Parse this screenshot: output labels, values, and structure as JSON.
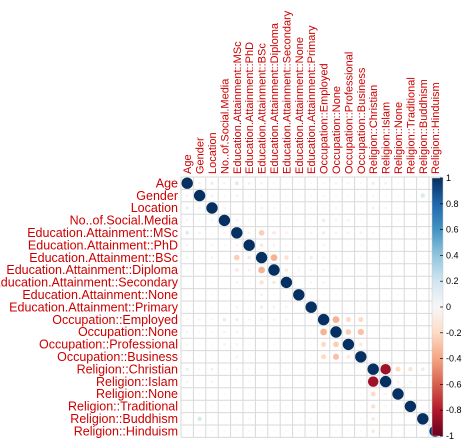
{
  "chart_data": {
    "type": "heatmap",
    "variables": [
      "Age",
      "Gender",
      "Location",
      "No..of.Social.Media",
      "Education.Attainment::MSc",
      "Education.Attainment::PhD",
      "Education.Attainment::BSc",
      "Education.Attainment::Diploma",
      "Education.Attainment::Secondary",
      "Education.Attainment::None",
      "Education.Attainment::Primary",
      "Occupation::Employed",
      "Occupation::None",
      "Occupation::Professional",
      "Occupation::Business",
      "Religion::Christian",
      "Religion::Islam",
      "Religion::None",
      "Religion::Traditional",
      "Religion::Buddhism",
      "Religion::Hinduism"
    ],
    "correlations": [
      [
        1,
        0.05,
        0.08,
        0.04,
        0.12,
        0.05,
        -0.05,
        -0.03,
        -0.02,
        0.02,
        0.02,
        0.03,
        0.05,
        -0.04,
        0.02,
        0.08,
        -0.05,
        0.02,
        0.02,
        -0.02,
        0.02
      ],
      [
        0.05,
        1,
        0.05,
        -0.03,
        0.05,
        0.02,
        0.03,
        -0.02,
        0.02,
        0.02,
        0.02,
        0.04,
        -0.03,
        0.02,
        0.02,
        0.03,
        -0.02,
        0.02,
        -0.02,
        0.15,
        0.02
      ],
      [
        0.08,
        0.05,
        1,
        0.04,
        0.02,
        0.03,
        -0.05,
        -0.03,
        0.02,
        0.02,
        0.02,
        0.03,
        -0.03,
        -0.02,
        0.02,
        0.06,
        -0.04,
        0.02,
        -0.02,
        0.02,
        0.02
      ],
      [
        0.04,
        -0.03,
        0.04,
        1,
        -0.05,
        -0.03,
        -0.02,
        0.02,
        0.02,
        -0.02,
        0.02,
        -0.1,
        0.05,
        0.05,
        0.02,
        0.02,
        0.02,
        0.02,
        0.02,
        0.02,
        0.02
      ],
      [
        0.12,
        0.05,
        0.02,
        -0.05,
        1,
        -0.05,
        -0.25,
        -0.1,
        -0.05,
        -0.02,
        -0.04,
        -0.08,
        0.05,
        -0.05,
        -0.05,
        0.03,
        0.02,
        0.02,
        0.02,
        0.02,
        0.02
      ],
      [
        0.05,
        0.02,
        0.03,
        -0.03,
        -0.05,
        1,
        -0.1,
        -0.05,
        -0.03,
        -0.02,
        -0.02,
        -0.04,
        0.02,
        0.02,
        0.02,
        0.02,
        0.02,
        0.02,
        0.02,
        0.02,
        0.02
      ],
      [
        -0.05,
        0.03,
        -0.05,
        -0.02,
        -0.25,
        -0.1,
        1,
        -0.35,
        -0.15,
        -0.05,
        -0.08,
        -0.05,
        0.03,
        0.02,
        0.02,
        -0.02,
        0.02,
        0.02,
        0.02,
        0.02,
        0.02
      ],
      [
        -0.03,
        -0.02,
        -0.03,
        0.02,
        -0.1,
        -0.05,
        -0.35,
        1,
        -0.1,
        -0.03,
        -0.05,
        0.05,
        -0.03,
        0.02,
        0.02,
        0.02,
        0.02,
        0.02,
        0.02,
        0.02,
        0.02
      ],
      [
        -0.02,
        0.02,
        0.02,
        0.02,
        -0.05,
        -0.03,
        -0.15,
        -0.1,
        1,
        -0.02,
        -0.04,
        -0.05,
        0.02,
        0.02,
        0.02,
        0.02,
        0.02,
        0.02,
        0.02,
        0.02,
        0.02
      ],
      [
        0.02,
        0.02,
        0.02,
        -0.02,
        -0.02,
        -0.02,
        -0.05,
        -0.03,
        -0.02,
        1,
        -0.02,
        -0.02,
        0.02,
        0.02,
        0.02,
        0.02,
        0.02,
        0.02,
        0.02,
        0.02,
        0.02
      ],
      [
        0.02,
        0.02,
        0.02,
        0.02,
        -0.04,
        -0.02,
        -0.08,
        -0.05,
        -0.04,
        -0.02,
        1,
        -0.03,
        0.02,
        0.02,
        0.02,
        0.02,
        0.02,
        0.02,
        0.02,
        0.02,
        0.02
      ],
      [
        0.03,
        0.04,
        0.03,
        -0.1,
        -0.08,
        -0.04,
        -0.05,
        0.05,
        -0.05,
        -0.02,
        -0.03,
        1,
        -0.35,
        -0.2,
        -0.2,
        0.02,
        -0.02,
        0.02,
        0.02,
        0.02,
        0.02
      ],
      [
        0.05,
        -0.03,
        -0.03,
        0.05,
        0.05,
        0.02,
        0.03,
        -0.03,
        0.02,
        0.02,
        0.02,
        -0.35,
        1,
        -0.25,
        -0.3,
        0.02,
        0.02,
        0.02,
        0.02,
        0.02,
        0.02
      ],
      [
        -0.04,
        0.02,
        -0.02,
        0.05,
        -0.05,
        0.02,
        0.02,
        0.02,
        0.02,
        0.02,
        0.02,
        -0.2,
        -0.25,
        1,
        -0.1,
        0.02,
        0.02,
        0.02,
        0.02,
        0.02,
        0.02
      ],
      [
        0.02,
        0.02,
        0.02,
        0.02,
        -0.05,
        0.02,
        0.02,
        0.02,
        0.02,
        0.02,
        0.02,
        -0.2,
        -0.3,
        -0.1,
        1,
        0.02,
        0.02,
        0.02,
        0.02,
        0.02,
        0.02
      ],
      [
        0.08,
        0.03,
        0.06,
        0.02,
        0.03,
        0.02,
        -0.02,
        0.02,
        0.02,
        0.02,
        0.02,
        0.02,
        0.02,
        0.02,
        0.02,
        1,
        -0.85,
        -0.2,
        -0.15,
        -0.1,
        -0.1
      ],
      [
        -0.05,
        -0.02,
        -0.04,
        0.02,
        0.02,
        0.02,
        0.02,
        0.02,
        0.02,
        0.02,
        0.02,
        -0.02,
        0.02,
        0.02,
        0.02,
        -0.85,
        1,
        -0.05,
        -0.04,
        -0.02,
        -0.02
      ],
      [
        0.02,
        0.02,
        0.02,
        0.02,
        0.02,
        0.02,
        0.02,
        0.02,
        0.02,
        0.02,
        0.02,
        0.02,
        0.02,
        0.02,
        0.02,
        -0.2,
        -0.05,
        1,
        -0.02,
        -0.02,
        -0.02
      ],
      [
        0.02,
        -0.02,
        -0.02,
        0.02,
        0.02,
        0.02,
        0.02,
        0.02,
        0.02,
        0.02,
        0.02,
        0.02,
        0.02,
        0.02,
        0.02,
        -0.15,
        -0.04,
        -0.02,
        1,
        -0.02,
        -0.02
      ],
      [
        -0.02,
        0.15,
        0.02,
        0.02,
        0.02,
        0.02,
        0.02,
        0.02,
        0.02,
        0.02,
        0.02,
        0.02,
        0.02,
        0.02,
        0.02,
        -0.1,
        -0.02,
        -0.02,
        -0.02,
        1,
        -0.02
      ],
      [
        0.02,
        0.02,
        0.02,
        0.02,
        0.02,
        0.02,
        0.02,
        0.02,
        0.02,
        0.02,
        0.02,
        0.02,
        0.02,
        0.02,
        0.02,
        -0.1,
        -0.02,
        -0.02,
        -0.02,
        -0.02,
        1
      ]
    ],
    "colorbar": {
      "ticks": [
        "1",
        "0.8",
        "0.6",
        "0.4",
        "0.2",
        "0",
        "-0.2",
        "-0.4",
        "-0.6",
        "-0.8",
        "-1"
      ],
      "range": [
        -1,
        1
      ],
      "colors": [
        "#67001f",
        "#b2182b",
        "#d6604d",
        "#f4a582",
        "#fddbc7",
        "#f7f7f7",
        "#d1e5f0",
        "#92c5de",
        "#4393c3",
        "#2166ac",
        "#053061"
      ]
    },
    "label_color": "#cc0000",
    "grid": true
  }
}
